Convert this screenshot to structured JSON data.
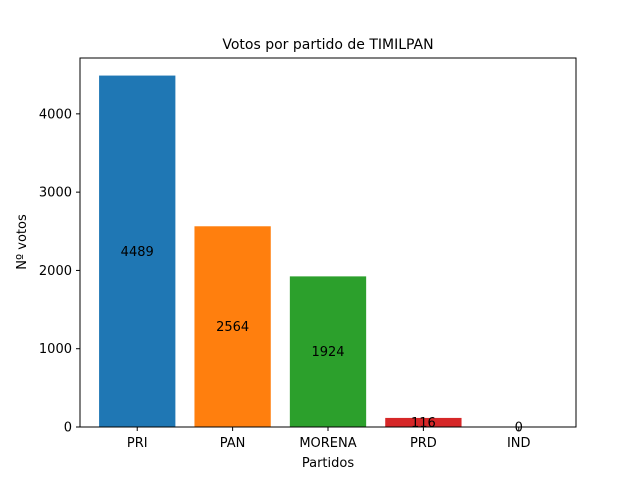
{
  "chart_data": {
    "type": "bar",
    "title": "Votos por partido de TIMILPAN",
    "xlabel": "Partidos",
    "ylabel": "Nº votos",
    "categories": [
      "PRI",
      "PAN",
      "MORENA",
      "PRD",
      "IND"
    ],
    "values": [
      4489,
      2564,
      1924,
      116,
      0
    ],
    "value_labels": [
      "4489",
      "2564",
      "1924",
      "116",
      "0"
    ],
    "colors": [
      "#1f77b4",
      "#ff7f0e",
      "#2ca02c",
      "#d62728",
      "#9467bd"
    ],
    "ylim": [
      0,
      4713.45
    ],
    "yticks": [
      0,
      1000,
      2000,
      3000,
      4000
    ],
    "ytick_labels": [
      "0",
      "1000",
      "2000",
      "3000",
      "4000"
    ],
    "grid": false,
    "legend": "none"
  }
}
